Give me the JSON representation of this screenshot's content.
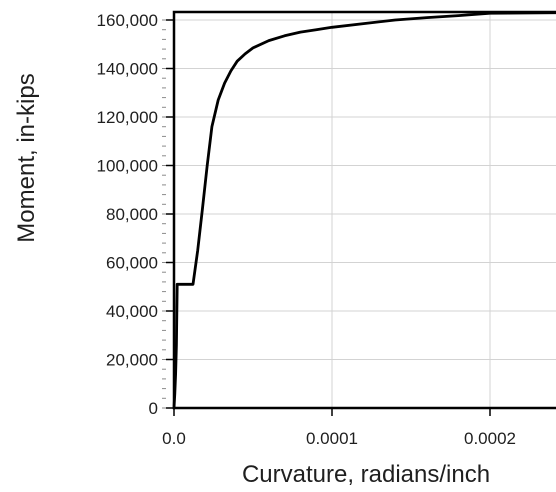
{
  "chart_data": {
    "type": "line",
    "title": "",
    "xlabel": "Curvature, radians/inch",
    "ylabel": "Moment, in-kips",
    "xlim": [
      0,
      0.00025
    ],
    "ylim": [
      0,
      164000
    ],
    "grid": true,
    "x_ticks": [
      0,
      0.0001,
      0.0002
    ],
    "x_tick_labels": [
      "0.0",
      "0.0001",
      "0.0002"
    ],
    "y_ticks": [
      0,
      20000,
      40000,
      60000,
      80000,
      100000,
      120000,
      140000,
      160000
    ],
    "y_tick_labels": [
      "0",
      "20,000",
      "40,000",
      "60,000",
      "80,000",
      "100,000",
      "120,000",
      "140,000",
      "160,000"
    ],
    "series": [
      {
        "color": "#000000",
        "points": [
          [
            0,
            0
          ],
          [
            5e-07,
            6000
          ],
          [
            1e-06,
            14000
          ],
          [
            1.5e-06,
            26000
          ],
          [
            2e-06,
            51000
          ],
          [
            1.2e-05,
            51000
          ],
          [
            1.5e-05,
            65000
          ],
          [
            1.8e-05,
            82000
          ],
          [
            2.1e-05,
            100000
          ],
          [
            2.4e-05,
            116000
          ],
          [
            2.8e-05,
            127000
          ],
          [
            3.2e-05,
            134000
          ],
          [
            3.6e-05,
            139000
          ],
          [
            4e-05,
            143000
          ],
          [
            4.5e-05,
            146000
          ],
          [
            5e-05,
            148500
          ],
          [
            6e-05,
            151500
          ],
          [
            7e-05,
            153500
          ],
          [
            8e-05,
            155000
          ],
          [
            9e-05,
            156000
          ],
          [
            0.0001,
            157000
          ],
          [
            0.00012,
            158500
          ],
          [
            0.00014,
            160000
          ],
          [
            0.00016,
            161000
          ],
          [
            0.00018,
            161800
          ],
          [
            0.0002,
            162800
          ],
          [
            0.00025,
            163000
          ]
        ]
      }
    ]
  }
}
